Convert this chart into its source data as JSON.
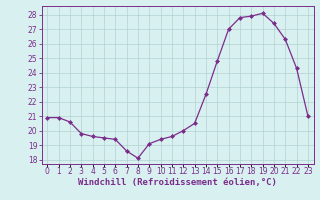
{
  "x": [
    0,
    1,
    2,
    3,
    4,
    5,
    6,
    7,
    8,
    9,
    10,
    11,
    12,
    13,
    14,
    15,
    16,
    17,
    18,
    19,
    20,
    21,
    22,
    23
  ],
  "y": [
    20.9,
    20.9,
    20.6,
    19.8,
    19.6,
    19.5,
    19.4,
    18.6,
    18.1,
    19.1,
    19.4,
    19.6,
    20.0,
    20.5,
    22.5,
    24.8,
    27.0,
    27.8,
    27.9,
    28.1,
    27.4,
    26.3,
    24.3,
    21.0
  ],
  "line_color": "#7b2d8b",
  "marker": "D",
  "markersize": 2.0,
  "linewidth": 0.9,
  "xlabel": "Windchill (Refroidissement éolien,°C)",
  "xlabel_fontsize": 6.5,
  "ylabel_ticks": [
    18,
    19,
    20,
    21,
    22,
    23,
    24,
    25,
    26,
    27,
    28
  ],
  "xticks": [
    0,
    1,
    2,
    3,
    4,
    5,
    6,
    7,
    8,
    9,
    10,
    11,
    12,
    13,
    14,
    15,
    16,
    17,
    18,
    19,
    20,
    21,
    22,
    23
  ],
  "ylim": [
    17.7,
    28.6
  ],
  "xlim": [
    -0.5,
    23.5
  ],
  "background_color": "#d8f0f0",
  "grid_color": "#aacccc",
  "tick_color": "#7b2d8b",
  "tick_fontsize": 5.5,
  "spine_color": "#7b2d8b"
}
